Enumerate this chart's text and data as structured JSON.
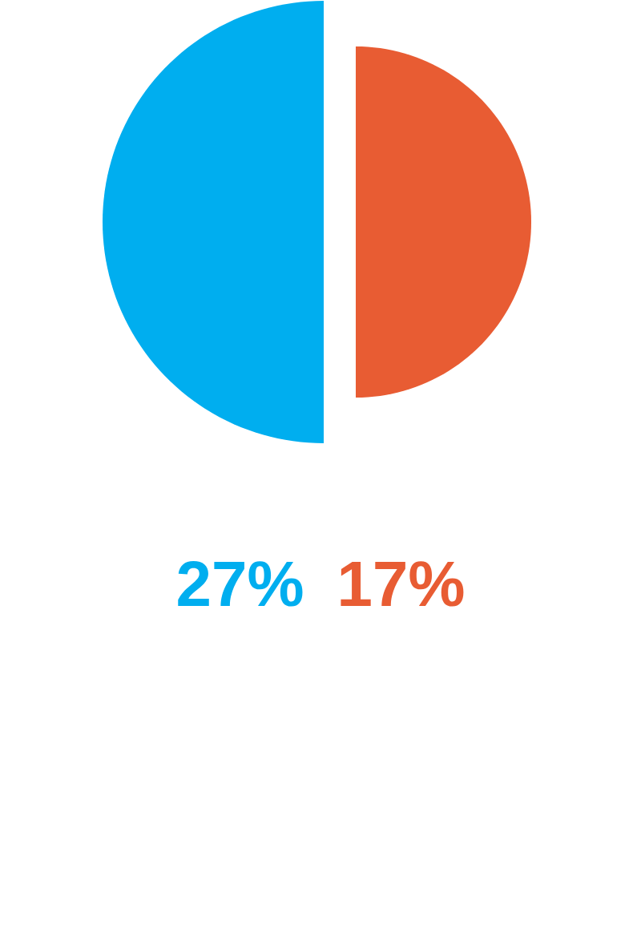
{
  "chart_data": {
    "type": "other",
    "categories": [
      null,
      null
    ],
    "values": [
      27,
      17
    ],
    "colors": [
      "#00aeef",
      "#e85c33"
    ],
    "value_labels": [
      "27%",
      "17%"
    ]
  }
}
